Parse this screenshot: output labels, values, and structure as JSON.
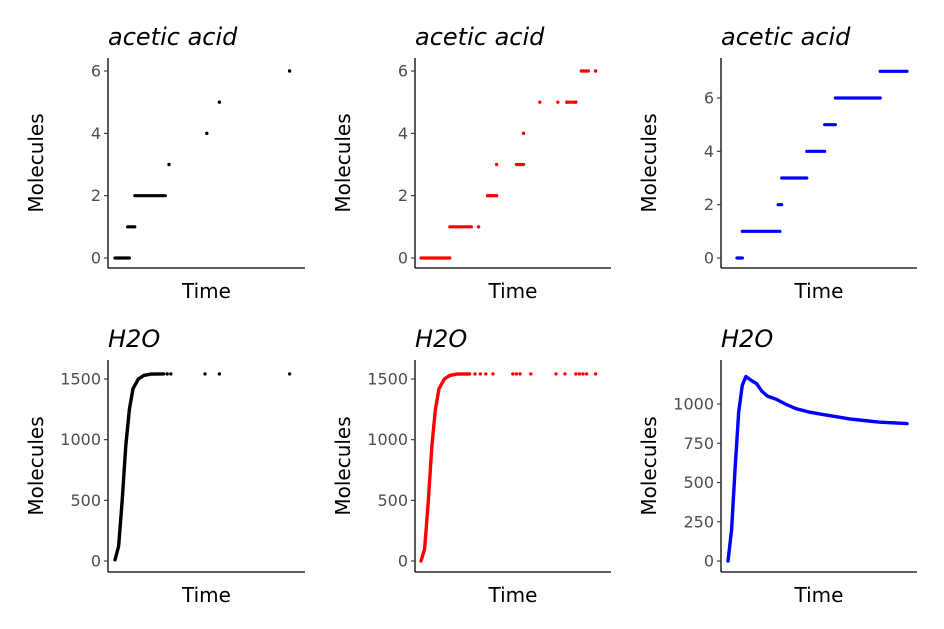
{
  "chart_data": [
    {
      "type": "scatter",
      "title": "acetic acid",
      "xlabel": "Time",
      "ylabel": "Molecules",
      "color": "#000000",
      "ylim": [
        0,
        6
      ],
      "yticks": [
        0,
        2,
        4,
        6
      ],
      "xlim": [
        0,
        1
      ],
      "segments": [
        {
          "x0": 0.0,
          "x1": 0.08,
          "y": 0
        },
        {
          "x0": 0.07,
          "x1": 0.11,
          "y": 1
        },
        {
          "x0": 0.11,
          "x1": 0.28,
          "y": 2
        }
      ],
      "points": [
        [
          0.3,
          3
        ],
        [
          0.51,
          4
        ],
        [
          0.58,
          5
        ],
        [
          0.97,
          6
        ]
      ]
    },
    {
      "type": "scatter",
      "title": "acetic acid",
      "xlabel": "Time",
      "ylabel": "Molecules",
      "color": "#ff0000",
      "ylim": [
        0,
        6
      ],
      "yticks": [
        0,
        2,
        4,
        6
      ],
      "xlim": [
        0,
        1
      ],
      "segments": [
        {
          "x0": 0.0,
          "x1": 0.16,
          "y": 0
        },
        {
          "x0": 0.16,
          "x1": 0.28,
          "y": 1
        },
        {
          "x0": 0.37,
          "x1": 0.42,
          "y": 2
        },
        {
          "x0": 0.53,
          "x1": 0.57,
          "y": 3
        },
        {
          "x0": 0.81,
          "x1": 0.86,
          "y": 5
        },
        {
          "x0": 0.89,
          "x1": 0.93,
          "y": 6
        }
      ],
      "points": [
        [
          0.32,
          1
        ],
        [
          0.37,
          2
        ],
        [
          0.39,
          2
        ],
        [
          0.42,
          2
        ],
        [
          0.42,
          3
        ],
        [
          0.57,
          4
        ],
        [
          0.66,
          5
        ],
        [
          0.76,
          5
        ],
        [
          0.81,
          5
        ],
        [
          0.86,
          5
        ],
        [
          0.97,
          6
        ]
      ]
    },
    {
      "type": "line",
      "title": "acetic acid",
      "xlabel": "Time",
      "ylabel": "Molecules",
      "color": "#0000ff",
      "ylim": [
        0,
        7
      ],
      "yticks": [
        0,
        2,
        4,
        6
      ],
      "xlim": [
        0,
        1
      ],
      "segments": [
        {
          "x0": 0.05,
          "x1": 0.08,
          "y": 0
        },
        {
          "x0": 0.08,
          "x1": 0.29,
          "y": 1
        },
        {
          "x0": 0.28,
          "x1": 0.3,
          "y": 2
        },
        {
          "x0": 0.3,
          "x1": 0.44,
          "y": 3
        },
        {
          "x0": 0.44,
          "x1": 0.54,
          "y": 4
        },
        {
          "x0": 0.54,
          "x1": 0.6,
          "y": 5
        },
        {
          "x0": 0.6,
          "x1": 0.85,
          "y": 6
        },
        {
          "x0": 0.85,
          "x1": 1.0,
          "y": 7
        }
      ],
      "points": []
    },
    {
      "type": "scatter",
      "title": "H2O",
      "xlabel": "Time",
      "ylabel": "Molecules",
      "color": "#000000",
      "ylim": [
        0,
        1545
      ],
      "yticks": [
        0,
        500,
        1000,
        1500
      ],
      "xlim": [
        0,
        1
      ],
      "curve": [
        [
          0.0,
          10
        ],
        [
          0.02,
          120
        ],
        [
          0.04,
          500
        ],
        [
          0.06,
          950
        ],
        [
          0.08,
          1250
        ],
        [
          0.1,
          1420
        ],
        [
          0.13,
          1500
        ],
        [
          0.16,
          1530
        ],
        [
          0.2,
          1540
        ],
        [
          0.27,
          1542
        ]
      ],
      "points": [
        [
          0.29,
          1542
        ],
        [
          0.31,
          1542
        ],
        [
          0.5,
          1542
        ],
        [
          0.58,
          1542
        ],
        [
          0.97,
          1542
        ]
      ]
    },
    {
      "type": "scatter",
      "title": "H2O",
      "xlabel": "Time",
      "ylabel": "Molecules",
      "color": "#ff0000",
      "ylim": [
        0,
        1545
      ],
      "yticks": [
        0,
        500,
        1000,
        1500
      ],
      "xlim": [
        0,
        1
      ],
      "curve": [
        [
          0.0,
          0
        ],
        [
          0.02,
          100
        ],
        [
          0.04,
          480
        ],
        [
          0.06,
          940
        ],
        [
          0.08,
          1250
        ],
        [
          0.1,
          1420
        ],
        [
          0.13,
          1500
        ],
        [
          0.16,
          1530
        ],
        [
          0.2,
          1540
        ],
        [
          0.27,
          1542
        ]
      ],
      "points": [
        [
          0.3,
          1542
        ],
        [
          0.33,
          1542
        ],
        [
          0.36,
          1542
        ],
        [
          0.4,
          1542
        ],
        [
          0.51,
          1542
        ],
        [
          0.53,
          1542
        ],
        [
          0.55,
          1542
        ],
        [
          0.61,
          1542
        ],
        [
          0.75,
          1542
        ],
        [
          0.8,
          1542
        ],
        [
          0.86,
          1542
        ],
        [
          0.88,
          1542
        ],
        [
          0.9,
          1542
        ],
        [
          0.92,
          1542
        ],
        [
          0.97,
          1542
        ]
      ]
    },
    {
      "type": "line",
      "title": "H2O",
      "xlabel": "Time",
      "ylabel": "Molecules",
      "color": "#0000ff",
      "ylim": [
        0,
        1200
      ],
      "yticks": [
        0,
        250,
        500,
        750,
        1000
      ],
      "xlim": [
        0,
        1
      ],
      "curve": [
        [
          0.0,
          0
        ],
        [
          0.02,
          200
        ],
        [
          0.04,
          600
        ],
        [
          0.06,
          950
        ],
        [
          0.08,
          1120
        ],
        [
          0.1,
          1175
        ],
        [
          0.13,
          1150
        ],
        [
          0.16,
          1130
        ],
        [
          0.19,
          1080
        ],
        [
          0.22,
          1050
        ],
        [
          0.27,
          1030
        ],
        [
          0.32,
          1000
        ],
        [
          0.38,
          970
        ],
        [
          0.45,
          950
        ],
        [
          0.52,
          935
        ],
        [
          0.6,
          920
        ],
        [
          0.68,
          905
        ],
        [
          0.76,
          895
        ],
        [
          0.84,
          885
        ],
        [
          0.92,
          880
        ],
        [
          1.0,
          875
        ]
      ],
      "points": []
    }
  ]
}
